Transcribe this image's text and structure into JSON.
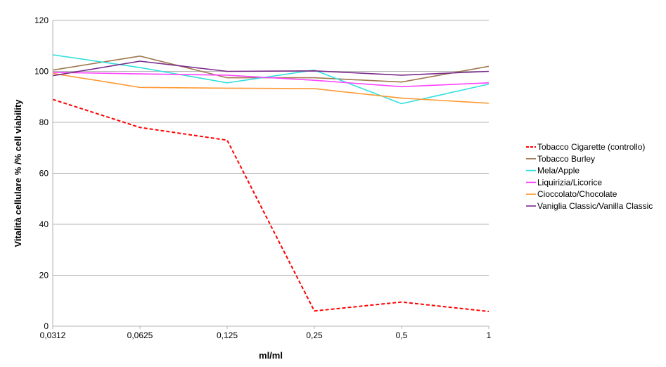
{
  "chart_data": {
    "type": "line",
    "title": "",
    "xlabel": "ml/ml",
    "ylabel": "Vitalità cellulare % /% cell viability",
    "categories": [
      "0,0312",
      "0,0625",
      "0,125",
      "0,25",
      "0,5",
      "1"
    ],
    "ylim": [
      0,
      120
    ],
    "yticks": [
      0,
      20,
      40,
      60,
      80,
      100,
      120
    ],
    "grid": "horizontal",
    "legend_position": "right",
    "series": [
      {
        "name": "Tobacco Cigarette (controllo)",
        "color": "#ff0000",
        "dashed": true,
        "values": [
          89,
          78,
          73,
          6,
          9.5,
          5.8
        ]
      },
      {
        "name": "Tobacco Burley",
        "color": "#a07850",
        "dashed": false,
        "values": [
          100.5,
          106,
          97.5,
          97.5,
          95.8,
          102
        ]
      },
      {
        "name": "Mela/Apple",
        "color": "#33e0e0",
        "dashed": false,
        "values": [
          106.5,
          101.5,
          95.5,
          100.5,
          87.3,
          95
        ]
      },
      {
        "name": "Liquirizia/Licorice",
        "color": "#ff44ff",
        "dashed": false,
        "values": [
          99.6,
          99,
          98.5,
          96.5,
          94,
          95.5
        ]
      },
      {
        "name": "Cioccolato/Chocolate",
        "color": "#ff9933",
        "dashed": false,
        "values": [
          99.2,
          93.7,
          93.4,
          93.2,
          89.5,
          87.5
        ]
      },
      {
        "name": "Vaniglia Classic/Vanilla Classic",
        "color": "#7a2a8a",
        "dashed": false,
        "values": [
          98.3,
          104,
          100,
          100.2,
          98.5,
          100
        ]
      }
    ]
  }
}
